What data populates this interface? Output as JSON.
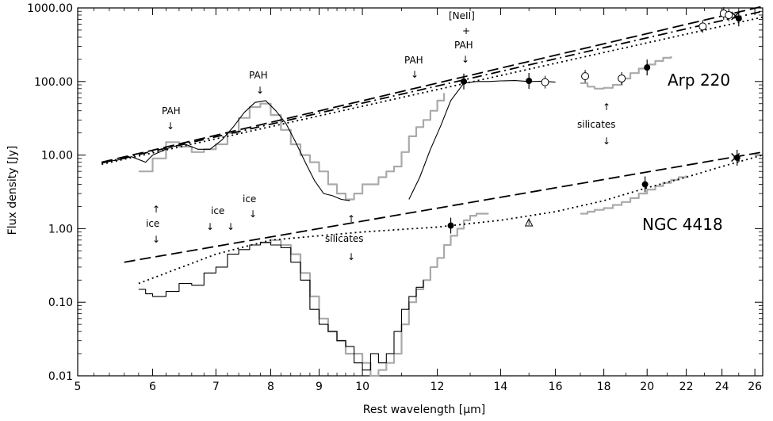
{
  "chart_data": {
    "type": "line",
    "title": "",
    "xlabel": "Rest wavelength [μm]",
    "ylabel": "Flux density [Jy]",
    "x_scale": "log",
    "y_scale": "log",
    "xlim": [
      5.0,
      26.5
    ],
    "ylim": [
      0.01,
      1000
    ],
    "x_ticks": [
      5,
      6,
      7,
      8,
      9,
      10,
      12,
      14,
      16,
      18,
      20,
      22,
      24,
      26
    ],
    "y_ticks": [
      0.01,
      0.1,
      1,
      10,
      100,
      1000
    ],
    "y_tick_labels": [
      "0.01",
      "0.10",
      "1.00",
      "10.00",
      "100.00",
      "1000.00"
    ],
    "grid": false,
    "labels": {
      "arp": "Arp 220",
      "ngc": "NGC 4418",
      "pah": "PAH",
      "neii_line1": "[NeII]",
      "neii_line2": "+",
      "ice": "ice",
      "silicates": "silicates"
    },
    "series": [
      {
        "name": "Arp 220",
        "style": "thin-black",
        "x": [
          5.3,
          5.5,
          5.7,
          5.9,
          6.0,
          6.2,
          6.3,
          6.5,
          6.7,
          6.9,
          7.1,
          7.3,
          7.5,
          7.7,
          7.9,
          8.1,
          8.3,
          8.5,
          8.7,
          8.9,
          9.1,
          9.3,
          9.5,
          9.7
        ],
        "y": [
          8,
          8.5,
          9.5,
          8,
          10,
          12,
          13,
          14,
          12,
          12,
          16,
          24,
          38,
          52,
          55,
          40,
          27,
          15,
          8,
          4.5,
          3,
          2.8,
          2.5,
          2.4
        ]
      },
      {
        "name": "Arp 220",
        "style": "thin-black",
        "x": [
          11.2,
          11.5,
          11.8,
          12.1,
          12.4,
          12.8,
          13.2,
          13.6,
          14.0,
          14.5,
          15.0,
          15.5,
          16.0
        ],
        "y": [
          2.5,
          5,
          12,
          25,
          55,
          95,
          100,
          100,
          102,
          103,
          100,
          101,
          98
        ]
      },
      {
        "name": "Arp 220",
        "style": "gray-step",
        "x": [
          5.8,
          6.0,
          6.2,
          6.4,
          6.6,
          6.8,
          7.0,
          7.2,
          7.4,
          7.6,
          7.8,
          8.0,
          8.2,
          8.4,
          8.6,
          8.8,
          9.0,
          9.2,
          9.4,
          9.6,
          9.8,
          10.0,
          10.2,
          10.4,
          10.6,
          10.8,
          11.0,
          11.2,
          11.4,
          11.6,
          11.8,
          12.0,
          12.2
        ],
        "y": [
          6,
          9,
          15,
          13,
          11,
          12,
          14,
          20,
          32,
          45,
          50,
          35,
          22,
          14,
          10,
          8,
          6,
          4,
          3,
          2.5,
          3,
          4,
          4,
          5,
          6,
          7,
          11,
          18,
          24,
          30,
          40,
          55,
          70
        ]
      },
      {
        "name": "Arp 220",
        "style": "gray-step",
        "x": [
          17.0,
          17.3,
          17.6,
          18.0,
          18.4,
          18.8,
          19.2,
          19.6,
          20.0,
          20.4,
          20.8,
          21.2
        ],
        "y": [
          95,
          85,
          80,
          82,
          90,
          110,
          130,
          150,
          170,
          190,
          210,
          220
        ]
      },
      {
        "name": "NGC 4418",
        "style": "thin-black-step",
        "x": [
          5.8,
          5.9,
          6.0,
          6.2,
          6.4,
          6.6,
          6.8,
          7.0,
          7.2,
          7.4,
          7.6,
          7.8,
          8.0,
          8.2,
          8.4,
          8.6,
          8.8,
          9.0,
          9.2,
          9.4,
          9.6,
          9.8,
          10.0,
          10.2,
          10.4,
          10.6,
          10.8,
          11.0,
          11.2,
          11.4,
          11.6
        ],
        "y": [
          0.15,
          0.13,
          0.12,
          0.14,
          0.18,
          0.17,
          0.25,
          0.3,
          0.45,
          0.52,
          0.6,
          0.65,
          0.6,
          0.55,
          0.35,
          0.2,
          0.08,
          0.05,
          0.04,
          0.03,
          0.025,
          0.015,
          0.012,
          0.02,
          0.015,
          0.02,
          0.04,
          0.08,
          0.12,
          0.16,
          0.2
        ]
      },
      {
        "name": "NGC 4418",
        "style": "gray-step",
        "x": [
          7.8,
          8.0,
          8.2,
          8.4,
          8.6,
          8.8,
          9.0,
          9.2,
          9.4,
          9.6,
          9.8,
          10.0,
          10.2,
          10.4,
          10.6,
          10.8,
          11.0,
          11.2,
          11.4,
          11.6,
          11.8,
          12.0,
          12.2,
          12.4,
          12.6,
          12.8,
          13.0,
          13.2,
          13.6
        ],
        "y": [
          0.65,
          0.7,
          0.6,
          0.45,
          0.25,
          0.12,
          0.06,
          0.04,
          0.03,
          0.02,
          0.02,
          0.015,
          0.01,
          0.012,
          0.015,
          0.02,
          0.05,
          0.1,
          0.15,
          0.2,
          0.3,
          0.4,
          0.6,
          0.8,
          1.0,
          1.3,
          1.5,
          1.6,
          1.6
        ]
      },
      {
        "name": "NGC 4418",
        "style": "gray-step",
        "x": [
          17.0,
          17.3,
          17.6,
          18.0,
          18.4,
          18.8,
          19.2,
          19.6,
          20.0,
          20.4,
          20.8,
          21.2,
          21.6,
          22.0
        ],
        "y": [
          1.6,
          1.7,
          1.8,
          1.9,
          2.1,
          2.3,
          2.6,
          3.0,
          3.4,
          3.8,
          4.2,
          4.6,
          5.0,
          5.3
        ]
      },
      {
        "name": "Arp 220 continuum",
        "style": "dashed",
        "x": [
          5.3,
          26.5
        ],
        "y": [
          8,
          1050
        ]
      },
      {
        "name": "Arp 220 continuum",
        "style": "dashdot",
        "x": [
          5.3,
          26.5
        ],
        "y": [
          7.8,
          900
        ]
      },
      {
        "name": "Arp 220 continuum",
        "style": "dotted",
        "x": [
          5.3,
          26.5
        ],
        "y": [
          7.5,
          750
        ]
      },
      {
        "name": "NGC 4418 continuum",
        "style": "dashed",
        "x": [
          5.6,
          26.5
        ],
        "y": [
          0.35,
          11
        ]
      },
      {
        "name": "NGC 4418 continuum",
        "style": "dotted",
        "x": [
          5.8,
          7.0,
          8.0,
          10.0,
          12.0,
          14.0,
          16.0,
          18.0,
          20.0,
          22.0,
          24.0,
          26.5
        ],
        "y": [
          0.18,
          0.45,
          0.7,
          0.9,
          1.05,
          1.3,
          1.7,
          2.4,
          3.6,
          5.0,
          7.0,
          10.0
        ]
      }
    ],
    "points": [
      {
        "x": 12.8,
        "y": 100,
        "marker": "filled-circle"
      },
      {
        "x": 15.0,
        "y": 102,
        "marker": "filled-circle"
      },
      {
        "x": 15.6,
        "y": 98,
        "marker": "open-circle"
      },
      {
        "x": 17.2,
        "y": 118,
        "marker": "open-circle"
      },
      {
        "x": 18.8,
        "y": 110,
        "marker": "open-circle"
      },
      {
        "x": 20.0,
        "y": 155,
        "marker": "filled-circle"
      },
      {
        "x": 22.9,
        "y": 560,
        "marker": "open-circle"
      },
      {
        "x": 24.1,
        "y": 840,
        "marker": "open-circle"
      },
      {
        "x": 24.4,
        "y": 800,
        "marker": "open-circle"
      },
      {
        "x": 24.8,
        "y": 780,
        "marker": "cross"
      },
      {
        "x": 25.0,
        "y": 720,
        "marker": "filled-circle"
      },
      {
        "x": 12.4,
        "y": 1.1,
        "marker": "filled-circle"
      },
      {
        "x": 15.0,
        "y": 1.2,
        "marker": "triangle"
      },
      {
        "x": 19.9,
        "y": 4.0,
        "marker": "filled-circle"
      },
      {
        "x": 24.9,
        "y": 9.2,
        "marker": "filled-circle"
      },
      {
        "x": 24.8,
        "y": 9.3,
        "marker": "cross"
      }
    ]
  }
}
